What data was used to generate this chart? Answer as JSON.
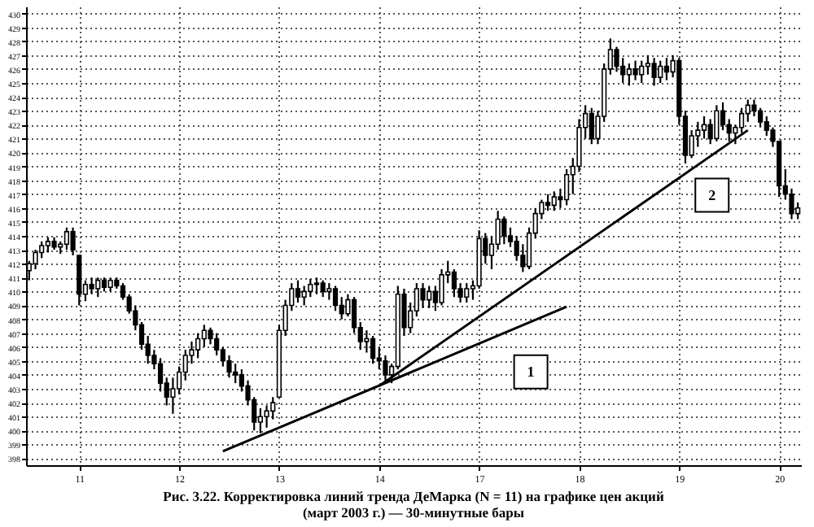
{
  "chart_data": {
    "type": "candlestick",
    "title": "Рис. 3.22. Корректировка линий тренда ДеМарка (N = 11) на графике цен акций (март 2003 г.) — 30-минутные бары",
    "categories": [
      null,
      null,
      null,
      null,
      null,
      null,
      null,
      null,
      "11",
      null,
      null,
      null,
      null,
      null,
      null,
      null,
      null,
      null,
      null,
      null,
      null,
      null,
      null,
      null,
      "12",
      null,
      null,
      null,
      null,
      null,
      null,
      null,
      null,
      null,
      null,
      null,
      null,
      null,
      null,
      null,
      "13",
      null,
      null,
      null,
      null,
      null,
      null,
      null,
      null,
      null,
      null,
      null,
      null,
      null,
      null,
      null,
      "14",
      null,
      null,
      null,
      null,
      null,
      null,
      null,
      null,
      null,
      null,
      null,
      null,
      null,
      null,
      null,
      "17",
      null,
      null,
      null,
      null,
      null,
      null,
      null,
      null,
      null,
      null,
      null,
      null,
      null,
      null,
      null,
      "18",
      null,
      null,
      null,
      null,
      null,
      null,
      null,
      null,
      null,
      null,
      null,
      null,
      null,
      null,
      null,
      "19",
      null,
      null,
      null,
      null,
      null,
      null,
      null,
      null,
      null,
      null,
      null,
      null,
      null,
      null,
      null,
      "20",
      null,
      null,
      null
    ],
    "ohlc": [
      [
        411.5,
        412.2,
        410.8,
        412.0
      ],
      [
        412.0,
        413.0,
        411.6,
        412.8
      ],
      [
        412.8,
        413.6,
        412.4,
        413.3
      ],
      [
        413.3,
        413.9,
        412.8,
        413.6
      ],
      [
        413.6,
        413.9,
        413.0,
        413.2
      ],
      [
        413.2,
        413.6,
        412.7,
        413.4
      ],
      [
        413.4,
        414.6,
        413.0,
        414.3
      ],
      [
        414.3,
        414.6,
        412.6,
        413.0
      ],
      [
        412.6,
        412.6,
        409.0,
        409.8
      ],
      [
        409.8,
        410.8,
        409.3,
        410.5
      ],
      [
        410.5,
        411.0,
        409.8,
        410.2
      ],
      [
        410.2,
        411.0,
        409.6,
        410.8
      ],
      [
        410.8,
        411.0,
        410.0,
        410.3
      ],
      [
        410.3,
        411.0,
        410.0,
        410.8
      ],
      [
        410.8,
        411.0,
        410.2,
        410.4
      ],
      [
        410.4,
        410.6,
        409.4,
        409.6
      ],
      [
        409.6,
        409.8,
        408.4,
        408.6
      ],
      [
        408.6,
        409.0,
        407.2,
        407.6
      ],
      [
        407.6,
        407.8,
        405.8,
        406.2
      ],
      [
        406.2,
        406.8,
        404.8,
        405.4
      ],
      [
        405.4,
        405.8,
        404.4,
        404.8
      ],
      [
        404.8,
        405.2,
        402.8,
        403.4
      ],
      [
        403.4,
        403.8,
        401.8,
        402.4
      ],
      [
        402.4,
        403.8,
        401.2,
        403.0
      ],
      [
        403.0,
        404.6,
        402.6,
        404.2
      ],
      [
        404.2,
        405.8,
        403.6,
        405.4
      ],
      [
        405.4,
        406.4,
        404.8,
        405.8
      ],
      [
        405.8,
        407.0,
        405.2,
        406.6
      ],
      [
        406.6,
        407.6,
        406.0,
        407.2
      ],
      [
        407.2,
        407.4,
        406.2,
        406.6
      ],
      [
        406.6,
        407.0,
        405.4,
        405.8
      ],
      [
        405.8,
        406.0,
        404.6,
        405.0
      ],
      [
        405.0,
        405.4,
        403.8,
        404.2
      ],
      [
        404.2,
        404.8,
        403.4,
        404.0
      ],
      [
        404.0,
        404.4,
        402.8,
        403.2
      ],
      [
        403.2,
        403.6,
        401.8,
        402.2
      ],
      [
        402.2,
        402.4,
        400.0,
        400.6
      ],
      [
        400.6,
        401.6,
        399.8,
        401.0
      ],
      [
        401.0,
        401.8,
        400.2,
        401.4
      ],
      [
        401.4,
        402.4,
        400.8,
        402.0
      ],
      [
        402.4,
        407.6,
        402.4,
        407.2
      ],
      [
        407.2,
        409.4,
        406.8,
        409.0
      ],
      [
        409.0,
        410.6,
        408.6,
        410.2
      ],
      [
        410.2,
        410.8,
        409.2,
        409.6
      ],
      [
        409.6,
        410.4,
        409.0,
        410.0
      ],
      [
        410.0,
        410.9,
        409.6,
        410.5
      ],
      [
        410.5,
        411.0,
        409.8,
        410.6
      ],
      [
        410.6,
        410.8,
        409.6,
        410.0
      ],
      [
        410.0,
        410.6,
        409.4,
        410.2
      ],
      [
        410.2,
        410.4,
        408.6,
        409.0
      ],
      [
        409.0,
        409.6,
        408.0,
        408.4
      ],
      [
        408.4,
        409.8,
        408.2,
        409.4
      ],
      [
        409.4,
        409.6,
        407.0,
        407.4
      ],
      [
        407.4,
        407.8,
        405.8,
        406.4
      ],
      [
        406.4,
        407.2,
        405.6,
        406.6
      ],
      [
        406.6,
        406.8,
        404.8,
        405.2
      ],
      [
        405.2,
        406.0,
        404.4,
        405.0
      ],
      [
        405.0,
        405.4,
        403.6,
        404.0
      ],
      [
        404.0,
        404.8,
        403.4,
        404.6
      ],
      [
        404.6,
        410.4,
        404.4,
        409.8
      ],
      [
        409.8,
        410.2,
        406.8,
        407.4
      ],
      [
        407.4,
        409.2,
        407.0,
        408.6
      ],
      [
        408.6,
        410.6,
        408.2,
        410.2
      ],
      [
        410.2,
        410.6,
        408.8,
        409.4
      ],
      [
        409.4,
        410.4,
        408.8,
        410.0
      ],
      [
        410.0,
        410.4,
        408.6,
        409.2
      ],
      [
        409.2,
        411.6,
        409.0,
        411.2
      ],
      [
        411.2,
        412.2,
        410.6,
        411.4
      ],
      [
        411.4,
        411.6,
        409.6,
        410.2
      ],
      [
        410.2,
        410.6,
        409.2,
        409.6
      ],
      [
        409.6,
        410.6,
        409.2,
        410.2
      ],
      [
        410.2,
        410.8,
        409.4,
        410.4
      ],
      [
        410.4,
        414.4,
        410.2,
        413.8
      ],
      [
        413.8,
        414.2,
        412.0,
        412.6
      ],
      [
        412.6,
        414.0,
        411.6,
        413.4
      ],
      [
        413.4,
        415.8,
        413.0,
        415.2
      ],
      [
        415.2,
        415.4,
        413.4,
        414.0
      ],
      [
        414.0,
        414.6,
        413.2,
        413.6
      ],
      [
        413.6,
        414.0,
        412.2,
        412.6
      ],
      [
        412.6,
        413.4,
        411.4,
        411.8
      ],
      [
        411.8,
        414.6,
        411.6,
        414.2
      ],
      [
        414.2,
        416.0,
        413.8,
        415.6
      ],
      [
        415.6,
        416.6,
        415.2,
        416.4
      ],
      [
        416.4,
        417.0,
        415.8,
        416.2
      ],
      [
        416.2,
        417.2,
        415.8,
        416.8
      ],
      [
        416.8,
        417.4,
        416.0,
        416.6
      ],
      [
        416.6,
        418.8,
        416.2,
        418.4
      ],
      [
        418.4,
        419.6,
        417.0,
        419.0
      ],
      [
        419.0,
        422.4,
        418.6,
        421.8
      ],
      [
        421.8,
        423.4,
        421.0,
        422.8
      ],
      [
        422.8,
        423.2,
        420.6,
        421.0
      ],
      [
        421.0,
        423.0,
        420.6,
        422.6
      ],
      [
        422.6,
        426.4,
        422.2,
        426.0
      ],
      [
        426.0,
        428.2,
        425.6,
        427.4
      ],
      [
        427.4,
        427.6,
        425.8,
        426.2
      ],
      [
        426.2,
        426.8,
        425.0,
        425.6
      ],
      [
        425.6,
        426.4,
        424.8,
        426.0
      ],
      [
        426.0,
        426.6,
        425.2,
        425.6
      ],
      [
        425.6,
        426.6,
        425.0,
        426.2
      ],
      [
        426.2,
        427.0,
        425.6,
        426.4
      ],
      [
        426.4,
        426.8,
        424.8,
        425.4
      ],
      [
        425.4,
        426.6,
        425.0,
        426.2
      ],
      [
        426.2,
        426.8,
        425.2,
        425.8
      ],
      [
        425.8,
        427.0,
        425.4,
        426.6
      ],
      [
        426.6,
        426.8,
        422.0,
        422.6
      ],
      [
        422.6,
        423.0,
        419.2,
        419.8
      ],
      [
        419.8,
        421.6,
        419.6,
        421.2
      ],
      [
        421.2,
        422.2,
        420.4,
        421.6
      ],
      [
        421.6,
        422.6,
        421.0,
        422.0
      ],
      [
        422.0,
        422.4,
        420.6,
        421.0
      ],
      [
        421.0,
        423.4,
        420.8,
        423.0
      ],
      [
        423.0,
        423.6,
        421.6,
        422.0
      ],
      [
        422.0,
        422.4,
        420.8,
        421.4
      ],
      [
        421.4,
        422.0,
        420.6,
        421.8
      ],
      [
        421.8,
        423.2,
        421.4,
        422.8
      ],
      [
        422.8,
        423.8,
        422.2,
        423.4
      ],
      [
        423.4,
        423.8,
        422.6,
        423.0
      ],
      [
        423.0,
        423.2,
        421.8,
        422.2
      ],
      [
        422.2,
        422.6,
        421.2,
        421.6
      ],
      [
        421.6,
        421.8,
        420.4,
        420.8
      ],
      [
        420.8,
        420.8,
        416.8,
        417.6
      ],
      [
        417.6,
        418.8,
        416.6,
        417.0
      ],
      [
        417.0,
        417.4,
        415.2,
        415.6
      ],
      [
        415.6,
        416.4,
        415.2,
        416.0
      ]
    ],
    "series": [
      {
        "name": "1",
        "type": "line",
        "color": "#000000",
        "values": [
          null,
          null,
          null,
          null,
          null,
          null,
          null,
          null,
          null,
          null,
          null,
          null,
          null,
          null,
          null,
          null,
          null,
          null,
          null,
          null,
          null,
          null,
          null,
          null,
          null,
          null,
          null,
          null,
          null,
          null,
          null,
          398.5,
          null,
          null,
          null,
          null,
          null,
          null,
          null,
          null,
          null,
          null,
          null,
          null,
          null,
          null,
          null,
          null,
          null,
          null,
          null,
          null,
          null,
          null,
          null,
          null,
          null,
          null,
          null,
          null,
          null,
          null,
          null,
          null,
          null,
          null,
          null,
          null,
          null,
          null,
          null,
          null,
          null,
          null,
          null,
          null,
          null,
          null,
          null,
          null,
          null,
          null,
          null,
          null,
          null,
          null,
          408.9,
          null,
          null,
          null,
          null,
          null,
          null,
          null,
          null,
          null,
          null,
          null,
          null,
          null,
          null,
          null,
          null,
          null,
          null,
          null,
          null,
          null,
          null,
          null,
          null,
          null,
          null,
          null,
          null,
          null,
          null,
          null,
          null,
          null,
          null,
          null,
          null,
          null
        ]
      },
      {
        "name": "2",
        "type": "line",
        "color": "#000000",
        "values": [
          null,
          null,
          null,
          null,
          null,
          null,
          null,
          null,
          null,
          null,
          null,
          null,
          null,
          null,
          null,
          null,
          null,
          null,
          null,
          null,
          null,
          null,
          null,
          null,
          null,
          null,
          null,
          null,
          null,
          null,
          null,
          null,
          null,
          null,
          null,
          null,
          null,
          null,
          null,
          null,
          null,
          null,
          null,
          null,
          null,
          null,
          null,
          null,
          null,
          null,
          null,
          null,
          null,
          null,
          null,
          null,
          403.2,
          null,
          null,
          null,
          null,
          null,
          null,
          null,
          null,
          null,
          null,
          null,
          null,
          null,
          null,
          null,
          null,
          null,
          null,
          null,
          null,
          null,
          null,
          null,
          null,
          null,
          null,
          null,
          null,
          null,
          null,
          null,
          null,
          null,
          null,
          null,
          null,
          null,
          null,
          null,
          null,
          null,
          null,
          null,
          null,
          null,
          null,
          null,
          null,
          null,
          null,
          null,
          null,
          null,
          null,
          null,
          null,
          null,
          null,
          421.6,
          null,
          null,
          null,
          null,
          null,
          null,
          null,
          null
        ]
      }
    ],
    "ylim": [
      397.5,
      430.5
    ],
    "yticks": [
      398,
      399,
      400,
      401,
      402,
      403,
      404,
      405,
      406,
      407,
      408,
      409,
      410,
      411,
      412,
      413,
      414,
      415,
      416,
      417,
      418,
      419,
      420,
      421,
      422,
      423,
      424,
      425,
      426,
      427,
      428,
      429,
      430
    ],
    "grid": true
  }
}
